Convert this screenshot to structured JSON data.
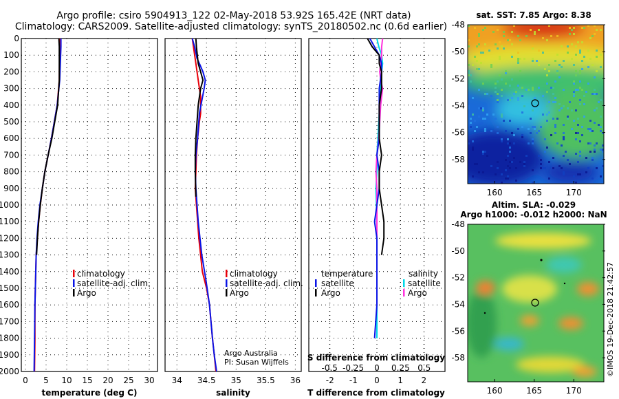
{
  "header": {
    "title_line1": "Argo profile: csiro 5904913_122 02-May-2018 53.92S 165.42E (NRT data)",
    "title_line2": "Climatology: CARS2009. Satellite-adjusted climatology: synTS_20180502.nc (0.6d earlier)"
  },
  "colors": {
    "argo": "#000000",
    "climatology": "#e8000a",
    "satellite_adj": "#0a14e6",
    "satellite_s": "#00d8e8",
    "argo_s": "#ff33dd"
  },
  "depth_axis": {
    "range": [
      0,
      2000
    ],
    "ticks": [
      "0",
      "100",
      "200",
      "300",
      "400",
      "500",
      "600",
      "700",
      "800",
      "900",
      "1000",
      "1100",
      "1200",
      "1300",
      "1400",
      "1500",
      "1600",
      "1700",
      "1800",
      "1900",
      "2000"
    ]
  },
  "panels": {
    "temperature": {
      "xlabel": "temperature (deg C)",
      "xrange": [
        -1,
        32
      ],
      "ticks": [
        "0",
        "5",
        "10",
        "15",
        "20",
        "25",
        "30"
      ],
      "legend": [
        "climatology",
        "satellite-adj. clim.",
        "Argo"
      ]
    },
    "salinity": {
      "xlabel": "salinity",
      "xrange": [
        33.8,
        36.1
      ],
      "ticks": [
        "34",
        "34.5",
        "35",
        "35.5",
        "36"
      ],
      "legend": [
        "climatology",
        "satellite-adj. clim.",
        "Argo"
      ],
      "credit_line1": "Argo Australia",
      "credit_line2": "PI: Susan Wijffels"
    },
    "difference": {
      "xlabel": "T difference from climatology",
      "xlabel_s": "S difference from climatology",
      "ticks_t": [
        "-2",
        "-1",
        "0",
        "1",
        "2"
      ],
      "ticks_s": [
        "-0.5",
        "-0.25",
        "0",
        "0.25",
        "0.5"
      ],
      "legend_t_title": "temperature",
      "legend_s_title": "salinity",
      "legend_t": [
        "satellite",
        "Argo"
      ],
      "legend_s": [
        "satellite",
        "Argo"
      ]
    }
  },
  "maps": {
    "sst": {
      "title": "sat. SST: 7.85 Argo: 8.38",
      "lat_ticks": [
        "-48",
        "-50",
        "-52",
        "-54",
        "-56",
        "-58"
      ],
      "lon_ticks": [
        "160",
        "165",
        "170"
      ]
    },
    "sla": {
      "title_line1": "Altim. SLA: -0.029",
      "title_line2": "Argo h1000: -0.012 h2000: NaN",
      "lat_ticks": [
        "-48",
        "-50",
        "-52",
        "-54",
        "-56",
        "-58"
      ],
      "lon_ticks": [
        "160",
        "165",
        "170"
      ],
      "stamp": "©IMOS 19-Dec-2018 21:42:57"
    }
  },
  "chart_data": [
    {
      "type": "line",
      "xlabel": "temperature (deg C)",
      "ylabel": "",
      "xlim": [
        -1,
        32
      ],
      "ylim": [
        2000,
        0
      ],
      "series": [
        {
          "name": "climatology",
          "x": [
            8.3,
            8.3,
            8.2,
            7.7,
            7.0,
            6.3,
            5.5,
            4.7,
            4.1,
            3.6,
            3.2,
            2.9,
            2.6,
            2.5,
            2.4,
            2.3,
            2.3,
            2.2
          ],
          "y": [
            0,
            50,
            250,
            400,
            500,
            600,
            700,
            800,
            900,
            1000,
            1100,
            1200,
            1300,
            1400,
            1500,
            1600,
            1800,
            2000
          ]
        },
        {
          "name": "satellite-adj. clim.",
          "x": [
            8.6,
            8.6,
            8.3,
            7.7,
            7.0,
            6.3,
            5.5,
            4.7,
            4.1,
            3.5,
            3.1,
            2.8,
            2.6,
            2.5,
            2.4,
            2.3,
            2.2,
            2.1
          ],
          "y": [
            0,
            50,
            250,
            400,
            500,
            600,
            700,
            800,
            900,
            1000,
            1100,
            1200,
            1300,
            1400,
            1500,
            1600,
            1800,
            2000
          ]
        },
        {
          "name": "Argo",
          "x": [
            8.1,
            8.2,
            8.2,
            7.8,
            7.1,
            6.4,
            5.5,
            4.7,
            4.1,
            3.6,
            3.2,
            2.9,
            2.7
          ],
          "y": [
            0,
            50,
            250,
            400,
            500,
            600,
            700,
            800,
            900,
            1000,
            1100,
            1200,
            1300
          ]
        }
      ]
    },
    {
      "type": "line",
      "xlabel": "salinity",
      "ylabel": "",
      "xlim": [
        33.8,
        36.1
      ],
      "ylim": [
        2000,
        0
      ],
      "series": [
        {
          "name": "climatology",
          "x": [
            34.26,
            34.28,
            34.32,
            34.36,
            34.4,
            34.4,
            34.38,
            34.35,
            34.33,
            34.32,
            34.31,
            34.33,
            34.37,
            34.43,
            34.5,
            34.55,
            34.6,
            34.63,
            34.66
          ],
          "y": [
            0,
            50,
            150,
            250,
            350,
            450,
            500,
            600,
            700,
            800,
            900,
            1000,
            1200,
            1400,
            1500,
            1600,
            1800,
            1900,
            2000
          ]
        },
        {
          "name": "satellite-adj. clim.",
          "x": [
            34.26,
            34.3,
            34.34,
            34.38,
            34.44,
            34.48,
            34.46,
            34.38,
            34.35,
            34.32,
            34.31,
            34.32,
            34.36,
            34.42,
            34.49,
            34.55,
            34.6,
            34.63,
            34.67
          ],
          "y": [
            0,
            50,
            120,
            150,
            200,
            250,
            300,
            450,
            600,
            700,
            800,
            900,
            1100,
            1300,
            1450,
            1600,
            1800,
            1900,
            2000
          ]
        },
        {
          "name": "Argo",
          "x": [
            34.32,
            34.33,
            34.36,
            34.4,
            34.44,
            34.4,
            34.36,
            34.34,
            34.32,
            34.31,
            34.31,
            34.32
          ],
          "y": [
            0,
            50,
            150,
            200,
            250,
            300,
            400,
            500,
            600,
            700,
            800,
            950
          ]
        }
      ]
    },
    {
      "type": "line",
      "xlabel": "T difference from climatology",
      "ylabel": "",
      "xlim": [
        -2.9,
        2.9
      ],
      "ylim": [
        2000,
        0
      ],
      "series": [
        {
          "name": "temperature satellite",
          "x": [
            -0.3,
            -0.1,
            0.1,
            0.2,
            0.2,
            0.1,
            0.1,
            0.1,
            0.1,
            0.0,
            0.1,
            0.1,
            0.0,
            -0.1,
            0.0,
            0.0,
            0.0,
            -0.1
          ],
          "y": [
            0,
            50,
            100,
            150,
            200,
            300,
            400,
            500,
            600,
            700,
            800,
            900,
            1000,
            1100,
            1200,
            1400,
            1600,
            1800
          ]
        },
        {
          "name": "temperature Argo",
          "x": [
            -0.4,
            -0.2,
            0.1,
            0.1,
            0.2,
            0.2,
            0.1,
            0.1,
            0.1,
            0.2,
            0.1,
            0.1,
            0.2,
            0.3,
            0.3,
            0.2
          ],
          "y": [
            0,
            50,
            100,
            150,
            200,
            300,
            400,
            500,
            600,
            700,
            800,
            900,
            1000,
            1100,
            1200,
            1300
          ]
        }
      ]
    },
    {
      "type": "line",
      "xlabel": "S difference from climatology",
      "ylabel": "",
      "xlim": [
        -0.72,
        0.72
      ],
      "ylim": [
        2000,
        0
      ],
      "series": [
        {
          "name": "salinity satellite",
          "x": [
            0.0,
            0.02,
            0.05,
            0.06,
            0.05,
            0.04,
            0.03,
            0.02,
            0.01,
            0.0,
            0.0,
            -0.01,
            0.0,
            0.0,
            0.0
          ],
          "y": [
            0,
            50,
            100,
            150,
            200,
            300,
            400,
            500,
            600,
            700,
            800,
            900,
            1100,
            1400,
            1800
          ]
        },
        {
          "name": "salinity Argo",
          "x": [
            0.06,
            0.05,
            0.05,
            0.04,
            0.03,
            0.04,
            0.06,
            0.04,
            0.03,
            0.02,
            0.0,
            -0.01,
            0.0,
            0.0,
            0.0,
            0.0
          ],
          "y": [
            0,
            50,
            100,
            150,
            200,
            250,
            300,
            400,
            500,
            600,
            700,
            800,
            900,
            1000,
            1100,
            1200
          ]
        }
      ]
    }
  ]
}
